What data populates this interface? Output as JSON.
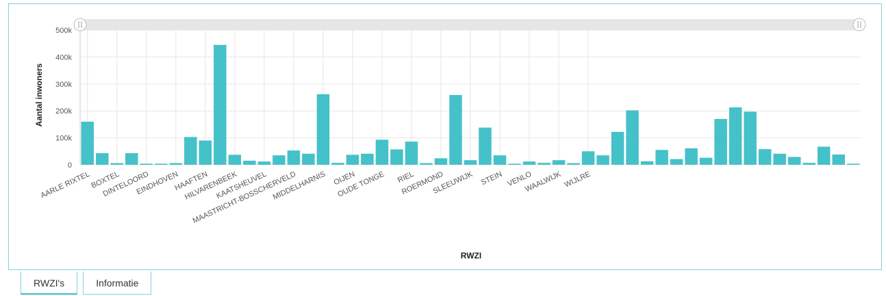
{
  "tabs": [
    {
      "label": "RWZI's",
      "active": true
    },
    {
      "label": "Informatie",
      "active": false
    }
  ],
  "colors": {
    "bar": "#45c1c9",
    "accent": "#7fd3d8",
    "grid": "#e6e6e6",
    "scrollbar": "#e6e6e6"
  },
  "chart_data": {
    "type": "bar",
    "xlabel": "RWZI",
    "ylabel": "Aantal inwoners",
    "ylim": [
      0,
      500000
    ],
    "yticks": [
      {
        "value": 0,
        "label": "0"
      },
      {
        "value": 100000,
        "label": "100k"
      },
      {
        "value": 200000,
        "label": "200k"
      },
      {
        "value": 300000,
        "label": "300k"
      },
      {
        "value": 400000,
        "label": "400k"
      },
      {
        "value": 500000,
        "label": "500k"
      }
    ],
    "grid": true,
    "tick_labels": [
      {
        "index": 0,
        "label": "AARLE RIXTEL"
      },
      {
        "index": 2,
        "label": "BOXTEL"
      },
      {
        "index": 4,
        "label": "DINTELOORD"
      },
      {
        "index": 6,
        "label": "EINDHOVEN"
      },
      {
        "index": 8,
        "label": "HAAFTEN"
      },
      {
        "index": 10,
        "label": "HILVARENBEEK"
      },
      {
        "index": 12,
        "label": "KAATSHEUVEL"
      },
      {
        "index": 14,
        "label": "MAASTRICHT-BOSSCHERVELD"
      },
      {
        "index": 16,
        "label": "MIDDELHARNIS"
      },
      {
        "index": 18,
        "label": "OIJEN"
      },
      {
        "index": 20,
        "label": "OUDE TONGE"
      },
      {
        "index": 22,
        "label": "RIEL"
      },
      {
        "index": 24,
        "label": "ROERMOND"
      },
      {
        "index": 26,
        "label": "SLEEUWIJK"
      },
      {
        "index": 28,
        "label": "STEIN"
      },
      {
        "index": 30,
        "label": "VENLO"
      },
      {
        "index": 32,
        "label": "WAALWIJK"
      },
      {
        "index": 34,
        "label": "WIJLRE"
      }
    ],
    "values": [
      160000,
      43000,
      6000,
      43000,
      4000,
      4000,
      6000,
      103000,
      90000,
      445000,
      37000,
      15000,
      12000,
      35000,
      53000,
      41000,
      262000,
      7000,
      37000,
      41000,
      93000,
      57000,
      86000,
      6000,
      24000,
      259000,
      17000,
      138000,
      35000,
      4000,
      12000,
      7000,
      17000,
      6000,
      50000,
      35000,
      122000,
      202000,
      13000,
      55000,
      21000,
      61000,
      26000,
      170000,
      213000,
      197000,
      58000,
      41000,
      29000,
      7000,
      67000,
      38000,
      4000
    ]
  }
}
